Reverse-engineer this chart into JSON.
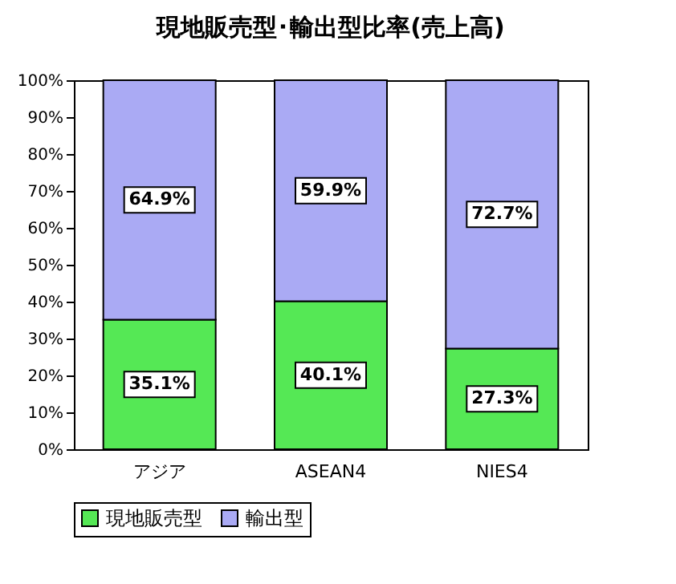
{
  "chart_data": {
    "type": "bar",
    "title": "現地販売型･輸出型比率(売上高)",
    "stacked": true,
    "categories": [
      "アジア",
      "ASEAN4",
      "NIES4"
    ],
    "series": [
      {
        "name": "現地販売型",
        "color": "#55e855",
        "values": [
          35.1,
          40.1,
          27.3
        ],
        "value_labels": [
          "35.1%",
          "40.1%",
          "27.3%"
        ]
      },
      {
        "name": "輸出型",
        "color": "#aaaaf4",
        "values": [
          64.9,
          59.9,
          72.7
        ],
        "value_labels": [
          "64.9%",
          "59.9%",
          "72.7%"
        ]
      }
    ],
    "ylim": [
      0,
      100
    ],
    "yticks": [
      {
        "value": 0,
        "label": "0%"
      },
      {
        "value": 10,
        "label": "10%"
      },
      {
        "value": 20,
        "label": "20%"
      },
      {
        "value": 30,
        "label": "30%"
      },
      {
        "value": 40,
        "label": "40%"
      },
      {
        "value": 50,
        "label": "50%"
      },
      {
        "value": 60,
        "label": "60%"
      },
      {
        "value": 70,
        "label": "70%"
      },
      {
        "value": 80,
        "label": "80%"
      },
      {
        "value": 90,
        "label": "90%"
      },
      {
        "value": 100,
        "label": "100%"
      }
    ],
    "grid": false,
    "legend": "bottom"
  }
}
